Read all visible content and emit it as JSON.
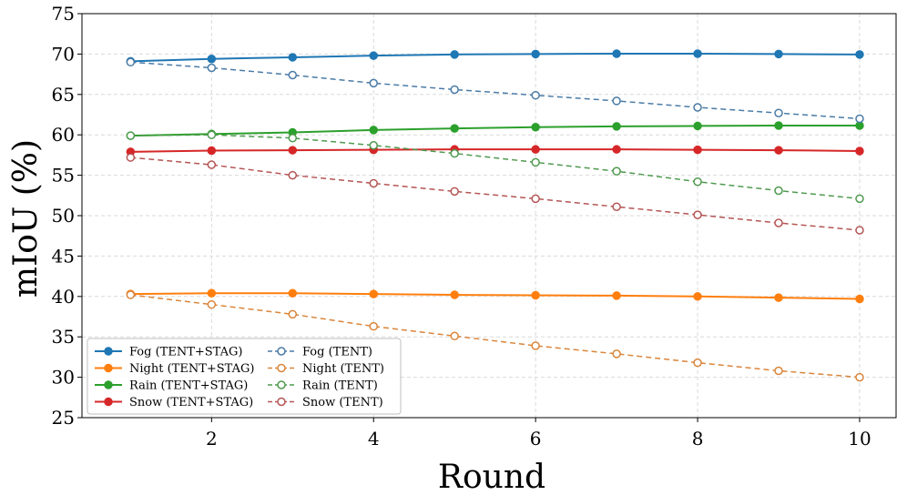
{
  "chart_data": {
    "type": "line",
    "title": "",
    "xlabel": "Round",
    "ylabel": "mIoU (%)",
    "x": [
      1,
      2,
      3,
      4,
      5,
      6,
      7,
      8,
      9,
      10
    ],
    "xlim": [
      0.4,
      10.45
    ],
    "ylim": [
      25,
      75
    ],
    "xticks": [
      2,
      4,
      6,
      8,
      10
    ],
    "yticks": [
      25,
      30,
      35,
      40,
      45,
      50,
      55,
      60,
      65,
      70,
      75
    ],
    "grid": true,
    "legend_position": "bottom-left",
    "series": [
      {
        "name": "Fog (TENT+STAG)",
        "color": "#1f77b4",
        "style": "solid",
        "marker": "filled",
        "values": [
          69.1,
          69.4,
          69.6,
          69.8,
          69.95,
          70.0,
          70.05,
          70.05,
          70.0,
          69.95
        ]
      },
      {
        "name": "Night (TENT+STAG)",
        "color": "#ff7f0e",
        "style": "solid",
        "marker": "filled",
        "values": [
          40.3,
          40.4,
          40.4,
          40.3,
          40.2,
          40.15,
          40.1,
          40.0,
          39.85,
          39.7
        ]
      },
      {
        "name": "Rain (TENT+STAG)",
        "color": "#2ca02c",
        "style": "solid",
        "marker": "filled",
        "values": [
          59.9,
          60.1,
          60.3,
          60.6,
          60.8,
          60.95,
          61.05,
          61.1,
          61.15,
          61.15
        ]
      },
      {
        "name": "Snow (TENT+STAG)",
        "color": "#d62728",
        "style": "solid",
        "marker": "filled",
        "values": [
          57.9,
          58.05,
          58.1,
          58.15,
          58.2,
          58.2,
          58.2,
          58.15,
          58.1,
          58.0
        ]
      },
      {
        "name": "Fog (TENT)",
        "color": "#4a7ba6",
        "style": "dashed",
        "marker": "hollow",
        "values": [
          69.0,
          68.3,
          67.4,
          66.4,
          65.6,
          64.9,
          64.2,
          63.4,
          62.7,
          62.0
        ]
      },
      {
        "name": "Night (TENT)",
        "color": "#d9853b",
        "style": "dashed",
        "marker": "hollow",
        "values": [
          40.2,
          39.0,
          37.8,
          36.3,
          35.1,
          33.9,
          32.9,
          31.8,
          30.8,
          30.0
        ]
      },
      {
        "name": "Rain (TENT)",
        "color": "#4f9a4f",
        "style": "dashed",
        "marker": "hollow",
        "values": [
          59.9,
          60.0,
          59.6,
          58.7,
          57.7,
          56.6,
          55.5,
          54.2,
          53.1,
          52.1
        ]
      },
      {
        "name": "Snow (TENT)",
        "color": "#b55555",
        "style": "dashed",
        "marker": "hollow",
        "values": [
          57.2,
          56.3,
          55.0,
          54.0,
          53.0,
          52.1,
          51.1,
          50.1,
          49.1,
          48.2
        ]
      }
    ]
  }
}
